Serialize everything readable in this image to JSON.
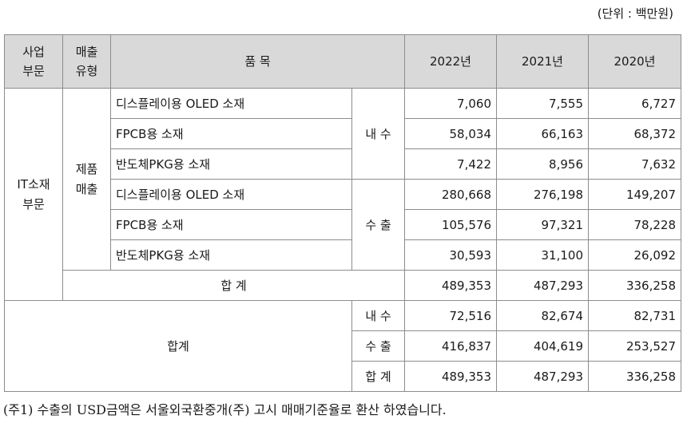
{
  "unit_label": "(단위 : 백만원)",
  "header": {
    "segment_line1": "사업",
    "segment_line2": "부문",
    "sales_type_line1": "매출",
    "sales_type_line2": "유형",
    "item": "품 목",
    "y2022": "2022년",
    "y2021": "2021년",
    "y2020": "2020년"
  },
  "segment": {
    "line1": "IT소재",
    "line2": "부문"
  },
  "sales_type": {
    "line1": "제품",
    "line2": "매출"
  },
  "domestic_label": "내 수",
  "export_label": "수 출",
  "rows": [
    {
      "item": "디스플레이용 OLED 소재",
      "y2022": "7,060",
      "y2021": "7,555",
      "y2020": "6,727"
    },
    {
      "item": "FPCB용 소재",
      "y2022": "58,034",
      "y2021": "66,163",
      "y2020": "68,372"
    },
    {
      "item": "반도체PKG용 소재",
      "y2022": "7,422",
      "y2021": "8,956",
      "y2020": "7,632"
    },
    {
      "item": "디스플레이용 OLED 소재",
      "y2022": "280,668",
      "y2021": "276,198",
      "y2020": "149,207"
    },
    {
      "item": "FPCB용 소재",
      "y2022": "105,576",
      "y2021": "97,321",
      "y2020": "78,228"
    },
    {
      "item": "반도체PKG용 소재",
      "y2022": "30,593",
      "y2021": "31,100",
      "y2020": "26,092"
    }
  ],
  "subtotal": {
    "label": "합 계",
    "y2022": "489,353",
    "y2021": "487,293",
    "y2020": "336,258"
  },
  "total": {
    "label": "합계",
    "rows": [
      {
        "label": "내 수",
        "y2022": "72,516",
        "y2021": "82,674",
        "y2020": "82,731"
      },
      {
        "label": "수 출",
        "y2022": "416,837",
        "y2021": "404,619",
        "y2020": "253,527"
      },
      {
        "label": "합 계",
        "y2022": "489,353",
        "y2021": "487,293",
        "y2020": "336,258"
      }
    ]
  },
  "footnote": "(주1) 수출의 USD금액은 서울외국환중개(주) 고시 매매기준율로 환산 하였습니다."
}
